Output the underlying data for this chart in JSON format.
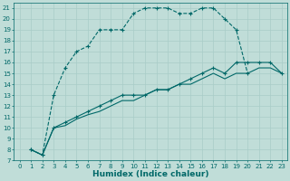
{
  "xlabel": "Humidex (Indice chaleur)",
  "bg_color": "#c0ddd8",
  "grid_color": "#a8ccc8",
  "line_color": "#006868",
  "xlim": [
    -0.5,
    23.5
  ],
  "ylim": [
    7,
    21.5
  ],
  "xticks": [
    0,
    1,
    2,
    3,
    4,
    5,
    6,
    7,
    8,
    9,
    10,
    11,
    12,
    13,
    14,
    15,
    16,
    17,
    18,
    19,
    20,
    21,
    22,
    23
  ],
  "yticks": [
    7,
    8,
    9,
    10,
    11,
    12,
    13,
    14,
    15,
    16,
    17,
    18,
    19,
    20,
    21
  ],
  "line1_x": [
    1,
    2,
    3,
    4,
    5,
    6,
    7,
    8,
    9,
    10,
    11,
    12,
    13,
    14,
    15,
    16,
    17,
    18,
    19,
    20
  ],
  "line1_y": [
    8,
    7.5,
    13,
    15.5,
    17,
    17.5,
    19,
    19,
    19,
    20.5,
    21,
    21,
    21,
    20.5,
    20.5,
    21,
    21,
    20,
    19,
    15
  ],
  "line2_x": [
    1,
    2,
    3,
    4,
    5,
    6,
    7,
    8,
    9,
    10,
    11,
    12,
    13,
    14,
    15,
    16,
    17,
    18,
    19,
    20,
    21,
    22,
    23
  ],
  "line2_y": [
    8,
    7.5,
    10,
    10.5,
    11,
    11.5,
    12,
    12.5,
    13,
    13,
    13,
    13.5,
    13.5,
    14,
    14.5,
    15,
    15.5,
    15,
    16,
    16,
    16,
    16,
    15
  ],
  "line3_x": [
    1,
    2,
    3,
    4,
    5,
    6,
    7,
    8,
    9,
    10,
    11,
    12,
    13,
    14,
    15,
    16,
    17,
    18,
    19,
    20,
    21,
    22,
    23
  ],
  "line3_y": [
    8,
    7.5,
    10,
    10.2,
    10.8,
    11.2,
    11.5,
    12,
    12.5,
    12.5,
    13,
    13.5,
    13.5,
    14,
    14,
    14.5,
    15,
    14.5,
    15,
    15,
    15.5,
    15.5,
    15
  ],
  "markersize": 3,
  "linewidth": 0.8,
  "tick_fontsize": 5,
  "label_fontsize": 6.5
}
